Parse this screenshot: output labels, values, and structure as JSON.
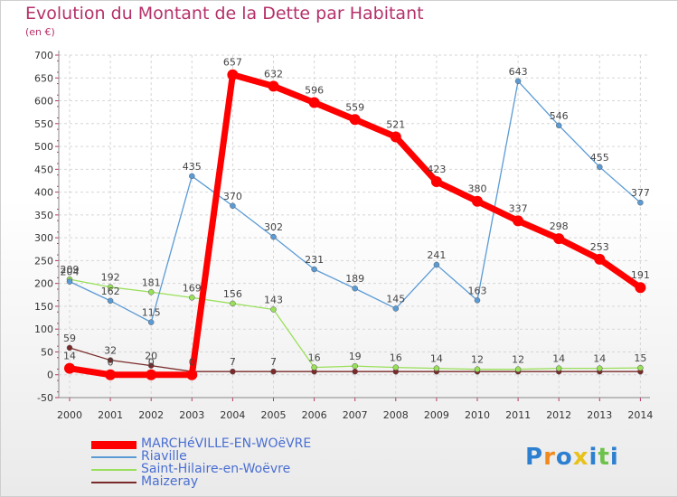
{
  "chart_data": {
    "type": "line",
    "title": "Evolution du Montant de la Dette par Habitant",
    "unit": "(en €)",
    "xlabel": "",
    "ylabel": "",
    "x": [
      "2000",
      "2001",
      "2002",
      "2003",
      "2004",
      "2005",
      "2006",
      "2007",
      "2008",
      "2009",
      "2010",
      "2011",
      "2012",
      "2013",
      "2014"
    ],
    "ylim": [
      -50,
      700
    ],
    "yticks": [
      -50,
      0,
      50,
      100,
      150,
      200,
      250,
      300,
      350,
      400,
      450,
      500,
      550,
      600,
      650,
      700
    ],
    "grid": true,
    "legend_position": "bottom-left",
    "series": [
      {
        "name": "MARCHéVILLE-EN-WOëVRE",
        "color": "#ff0000",
        "values": [
          14,
          0,
          0,
          0,
          657,
          632,
          596,
          559,
          521,
          423,
          380,
          337,
          298,
          253,
          191
        ],
        "labels": [
          "14",
          "0",
          "0",
          "0",
          "657",
          "632",
          "596",
          "559",
          "521",
          "423",
          "380",
          "337",
          "298",
          "253",
          "191"
        ]
      },
      {
        "name": "Riaville",
        "color": "#5b9bd5",
        "values": [
          204,
          162,
          115,
          435,
          370,
          302,
          231,
          189,
          145,
          241,
          163,
          643,
          546,
          455,
          377
        ],
        "labels": [
          "204",
          "162",
          "115",
          "435",
          "370",
          "302",
          "231",
          "189",
          "145",
          "241",
          "163",
          "643",
          "546",
          "455",
          "377"
        ]
      },
      {
        "name": "Saint-Hilaire-en-Woëvre",
        "color": "#99e05a",
        "values": [
          209,
          192,
          181,
          169,
          156,
          143,
          16,
          19,
          16,
          14,
          12,
          12,
          14,
          14,
          15
        ],
        "labels": [
          "209",
          "192",
          "181",
          "169",
          "156",
          "143",
          "16",
          "19",
          "16",
          "14",
          "12",
          "12",
          "14",
          "14",
          "15"
        ]
      },
      {
        "name": "Maizeray",
        "color": "#7a2a2a",
        "values": [
          59,
          32,
          20,
          7,
          7,
          7,
          7,
          7,
          7,
          7,
          7,
          7,
          7,
          7,
          7
        ],
        "labels": [
          "59",
          "32",
          "20",
          "",
          "7",
          "7",
          "",
          "",
          "",
          "",
          "",
          "",
          "",
          "",
          ""
        ]
      }
    ]
  },
  "brand": {
    "text": "Proxiti",
    "letter_colors": [
      "#2d7fd0",
      "#f08a1d",
      "#2d7fd0",
      "#e8c21b",
      "#2d7fd0",
      "#6cc24a",
      "#2d7fd0"
    ]
  }
}
